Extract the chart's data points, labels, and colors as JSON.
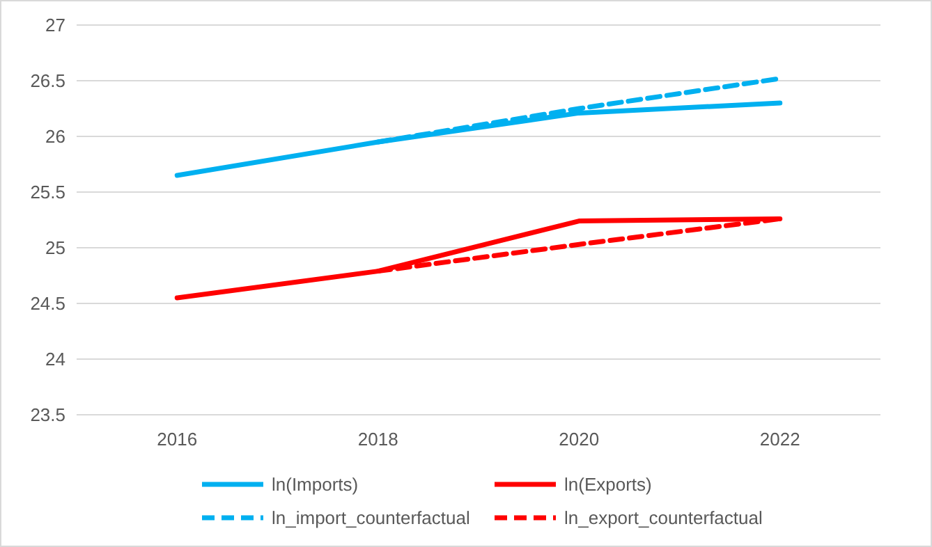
{
  "chart_data": {
    "type": "line",
    "categories": [
      "2016",
      "2018",
      "2020",
      "2022"
    ],
    "series": [
      {
        "name": "ln(Imports)",
        "color": "#00b0f0",
        "values": [
          25.65,
          25.95,
          26.21,
          26.3
        ],
        "line_style": "solid"
      },
      {
        "name": "ln(Exports)",
        "color": "#ff0000",
        "values": [
          24.55,
          24.79,
          25.24,
          25.26
        ],
        "line_style": "solid"
      },
      {
        "name": "ln_import_counterfactual",
        "color": "#00b0f0",
        "values": [
          null,
          25.95,
          26.25,
          26.52
        ],
        "line_style": "dashed"
      },
      {
        "name": "ln_export_counterfactual",
        "color": "#ff0000",
        "values": [
          null,
          24.79,
          25.03,
          25.26
        ],
        "line_style": "dashed"
      }
    ],
    "ylim": [
      23.5,
      27
    ],
    "yticks": [
      23.5,
      24,
      24.5,
      25,
      25.5,
      26,
      26.5,
      27
    ],
    "grid": "y",
    "legend": "bottom",
    "marker": "none"
  }
}
